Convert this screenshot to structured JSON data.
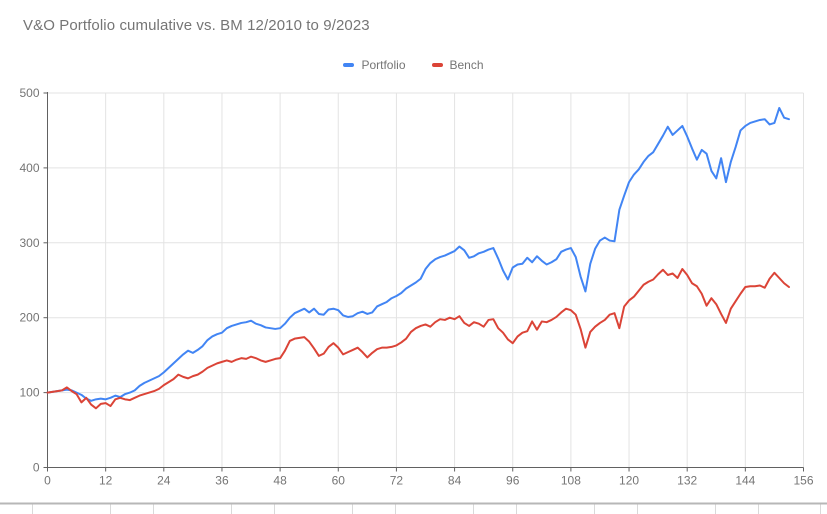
{
  "title": "V&O Portfolio cumulative vs. BM 12/2010 to 9/2023",
  "colors": {
    "background": "#ffffff",
    "title_text": "#757575",
    "tick_label": "#757575",
    "legend_text": "#757575",
    "axis": "#616161",
    "gridline": "#e3e3e3",
    "portfolio_line": "#4285f4",
    "bench_line": "#db4437",
    "sheet_row_border": "#b7b7b7",
    "sheet_column_border": "#d9d9d9"
  },
  "chart_data": {
    "type": "line",
    "title": "V&O Portfolio cumulative vs. BM 12/2010 to 9/2023",
    "xlabel": "",
    "ylabel": "",
    "x_unit": "months since 12/2010",
    "xlim": [
      0,
      156
    ],
    "ylim": [
      0,
      500
    ],
    "x_ticks": [
      0,
      12,
      24,
      36,
      48,
      60,
      72,
      84,
      96,
      108,
      120,
      132,
      144,
      156
    ],
    "y_ticks": [
      0,
      100,
      200,
      300,
      400,
      500
    ],
    "grid": true,
    "legend_position": "top-center",
    "x_start": 0,
    "x_step": 1,
    "series": [
      {
        "name": "Portfolio",
        "color": "#4285f4",
        "values": [
          100,
          101,
          102,
          103,
          104,
          103,
          100,
          97,
          92,
          89,
          91,
          92,
          91,
          93,
          96,
          94,
          98,
          100,
          103,
          109,
          113,
          116,
          119,
          122,
          127,
          133,
          139,
          145,
          151,
          156,
          153,
          157,
          162,
          170,
          175,
          178,
          180,
          186,
          189,
          191,
          193,
          194,
          196,
          192,
          190,
          187,
          186,
          185,
          186,
          192,
          200,
          206,
          209,
          212,
          207,
          212,
          205,
          204,
          211,
          212,
          210,
          203,
          201,
          202,
          206,
          208,
          205,
          207,
          215,
          218,
          221,
          226,
          229,
          233,
          239,
          243,
          247,
          252,
          265,
          273,
          278,
          281,
          283,
          286,
          289,
          295,
          290,
          280,
          282,
          286,
          288,
          291,
          293,
          279,
          263,
          251,
          267,
          271,
          272,
          280,
          274,
          282,
          276,
          271,
          274,
          278,
          288,
          291,
          293,
          281,
          255,
          235,
          272,
          292,
          303,
          307,
          303,
          302,
          344,
          363,
          381,
          391,
          398,
          408,
          416,
          421,
          432,
          443,
          455,
          444,
          450,
          456,
          442,
          426,
          411,
          424,
          419,
          396,
          386,
          413,
          381,
          408,
          428,
          450,
          456,
          460,
          462,
          464,
          465,
          458,
          460,
          480,
          467,
          465
        ]
      },
      {
        "name": "Bench",
        "color": "#db4437",
        "values": [
          100,
          101,
          102,
          103,
          107,
          102,
          98,
          87,
          93,
          84,
          79,
          85,
          86,
          82,
          91,
          93,
          91,
          90,
          93,
          96,
          98,
          100,
          102,
          105,
          110,
          114,
          118,
          124,
          121,
          119,
          122,
          124,
          128,
          133,
          136,
          139,
          141,
          143,
          141,
          144,
          146,
          145,
          148,
          146,
          143,
          141,
          143,
          145,
          146,
          156,
          169,
          172,
          173,
          174,
          168,
          159,
          149,
          152,
          161,
          166,
          160,
          151,
          154,
          157,
          160,
          154,
          147,
          153,
          158,
          160,
          160,
          161,
          163,
          167,
          172,
          181,
          186,
          189,
          191,
          188,
          194,
          198,
          197,
          200,
          198,
          202,
          193,
          189,
          194,
          192,
          188,
          197,
          198,
          186,
          180,
          171,
          166,
          175,
          180,
          182,
          195,
          184,
          195,
          194,
          197,
          201,
          207,
          212,
          210,
          204,
          185,
          160,
          181,
          188,
          193,
          197,
          204,
          206,
          186,
          215,
          223,
          228,
          236,
          244,
          248,
          251,
          258,
          264,
          257,
          259,
          253,
          265,
          257,
          246,
          242,
          232,
          216,
          226,
          218,
          205,
          193,
          212,
          222,
          232,
          241,
          242,
          242,
          243,
          240,
          252,
          260,
          253,
          246,
          241
        ]
      }
    ]
  }
}
